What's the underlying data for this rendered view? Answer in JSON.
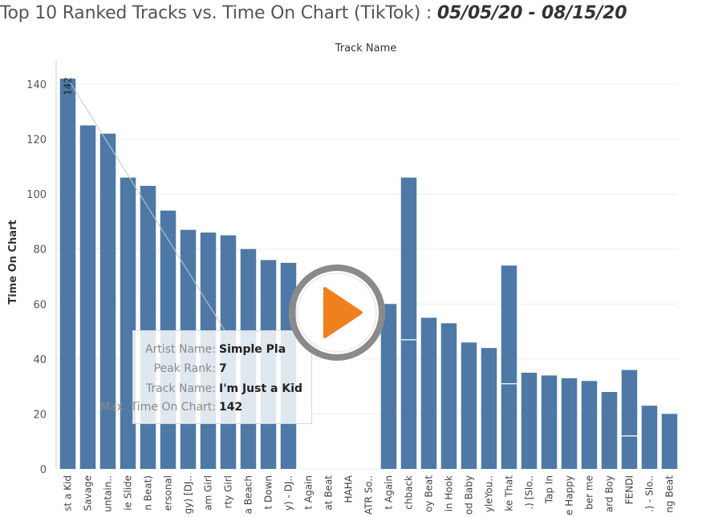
{
  "header": {
    "title_main": "Top 10 Ranked Tracks vs. Time On Chart (TikTok) : ",
    "title_range": "05/05/20 - 08/15/20"
  },
  "tooltip": {
    "rows": [
      {
        "label": "Artist Name:",
        "value": "Simple Pla"
      },
      {
        "label": "Peak Rank:",
        "value": "7"
      },
      {
        "label": "Track Name:",
        "value": "I'm Just a Kid"
      },
      {
        "label": "Max. Time On Chart:",
        "value": "142"
      }
    ]
  },
  "media": {
    "play_icon": "play-button-icon",
    "accent": "#f07f1d"
  },
  "chart_data": {
    "type": "bar",
    "top_axis_title": "Track Name",
    "ylabel": "Time On Chart",
    "ylim": [
      0,
      145
    ],
    "yticks": [
      0,
      20,
      40,
      60,
      80,
      100,
      120,
      140
    ],
    "grid": true,
    "bar_color": "#4e79a7",
    "categories": [
      "st a Kid",
      "Savage",
      "untain..",
      "ie Slide",
      "n Beat)",
      "ersonal",
      "gy) [DJ..",
      "am Girl",
      "rty Girl",
      "a Beach",
      "t Down",
      "y) - DJ..",
      "t Again",
      "at Beat",
      "HAHA",
      "ATR So..",
      "t Again",
      "chback",
      "oy Beat",
      "in Hook",
      "od Baby",
      "yleYou..",
      "ke That",
      ".) [Slo..",
      "Tap In",
      "e Happy",
      "ber me",
      "ard Boy",
      "FENDI",
      ".) - Slo..",
      "ng Beat"
    ],
    "values": [
      142,
      125,
      122,
      106,
      103,
      94,
      87,
      86,
      85,
      80,
      76,
      75,
      null,
      null,
      null,
      null,
      60,
      106,
      55,
      53,
      46,
      44,
      74,
      35,
      34,
      33,
      32,
      28,
      36,
      23,
      20
    ],
    "segment_marks": [
      null,
      null,
      null,
      null,
      null,
      null,
      null,
      null,
      null,
      null,
      null,
      null,
      null,
      null,
      null,
      null,
      null,
      47,
      null,
      null,
      null,
      null,
      31,
      null,
      null,
      null,
      null,
      null,
      12,
      null,
      null
    ],
    "data_labels": [
      {
        "index": 0,
        "text": "142"
      }
    ]
  }
}
